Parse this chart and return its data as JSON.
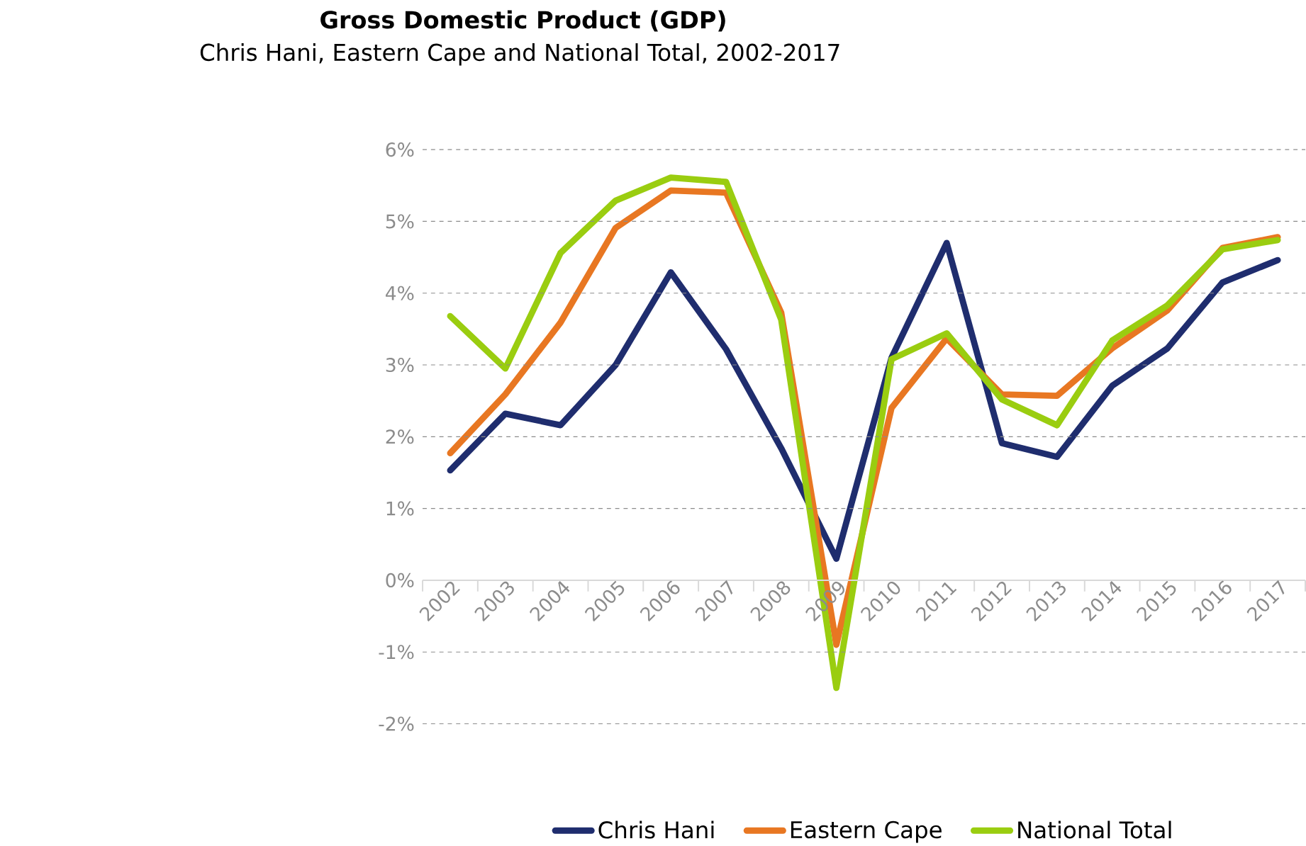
{
  "chart_data": {
    "type": "line",
    "title": "Gross Domestic Product (GDP)",
    "subtitle": "Chris Hani, Eastern Cape and National Total, 2002-2017",
    "categories": [
      "2002",
      "2003",
      "2004",
      "2005",
      "2006",
      "2007",
      "2008",
      "2009",
      "2010",
      "2011",
      "2012",
      "2013",
      "2014",
      "2015",
      "2016",
      "2017"
    ],
    "series": [
      {
        "name": "Chris Hani",
        "color": "#1f2d6e",
        "values": [
          1.53,
          2.32,
          2.16,
          3.0,
          4.29,
          3.22,
          1.84,
          0.3,
          3.1,
          4.7,
          1.91,
          1.72,
          2.71,
          3.23,
          4.15,
          4.46
        ]
      },
      {
        "name": "Eastern Cape",
        "color": "#e87722",
        "values": [
          1.77,
          2.59,
          3.59,
          4.91,
          5.43,
          5.4,
          3.73,
          -0.9,
          2.4,
          3.37,
          2.59,
          2.57,
          3.23,
          3.76,
          4.63,
          4.78
        ]
      },
      {
        "name": "National Total",
        "color": "#9acd10",
        "values": [
          3.68,
          2.95,
          4.56,
          5.29,
          5.61,
          5.55,
          3.63,
          -1.5,
          3.08,
          3.44,
          2.52,
          2.16,
          3.34,
          3.83,
          4.61,
          4.74
        ]
      }
    ],
    "ylim": [
      -2,
      6
    ],
    "yticks": [
      {
        "value": -2,
        "label": "-2%"
      },
      {
        "value": -1,
        "label": "-1%"
      },
      {
        "value": 0,
        "label": "0%"
      },
      {
        "value": 1,
        "label": "1%"
      },
      {
        "value": 2,
        "label": "2%"
      },
      {
        "value": 3,
        "label": "3%"
      },
      {
        "value": 4,
        "label": "4%"
      },
      {
        "value": 5,
        "label": "5%"
      },
      {
        "value": 6,
        "label": "6%"
      }
    ],
    "grid": "y",
    "legend": "bottom"
  }
}
